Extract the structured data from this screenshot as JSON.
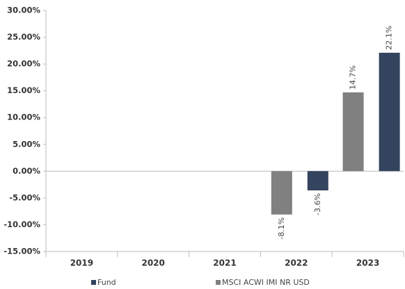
{
  "chart_data": {
    "type": "bar",
    "categories": [
      "2019",
      "2020",
      "2021",
      "2022",
      "2023"
    ],
    "series": [
      {
        "name": "Fund",
        "color": "#34445e",
        "values": [
          null,
          null,
          null,
          -3.6,
          22.1
        ],
        "value_labels": [
          null,
          null,
          null,
          "-3.6%",
          "22.1%"
        ]
      },
      {
        "name": "MSCI ACWI IMI NR USD",
        "color": "#808080",
        "values": [
          null,
          null,
          null,
          -8.1,
          14.7
        ],
        "value_labels": [
          null,
          null,
          null,
          "-8.1%",
          "14.7%"
        ]
      }
    ],
    "ylim": [
      -15,
      30
    ],
    "yticks": [
      {
        "value": -15,
        "label": "-15.00%"
      },
      {
        "value": -10,
        "label": "-10.00%"
      },
      {
        "value": -5,
        "label": "-5.00%"
      },
      {
        "value": 0,
        "label": "0.00%"
      },
      {
        "value": 5,
        "label": "5.00%"
      },
      {
        "value": 10,
        "label": "10.00%"
      },
      {
        "value": 15,
        "label": "15.00%"
      },
      {
        "value": 20,
        "label": "20.00%"
      },
      {
        "value": 25,
        "label": "25.00%"
      },
      {
        "value": 30,
        "label": "30.00%"
      }
    ],
    "grid": false,
    "legend": "bottom"
  }
}
